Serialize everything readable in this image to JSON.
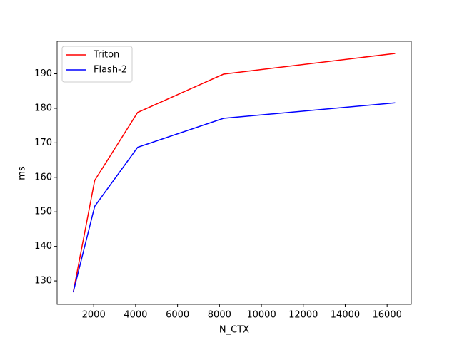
{
  "chart_data": {
    "type": "line",
    "x_label": "N_CTX",
    "y_label": "ms",
    "x": [
      1024,
      2048,
      4096,
      8192,
      16384
    ],
    "series": [
      {
        "name": "Triton",
        "color": "#ff0000",
        "values": [
          126.7,
          159.1,
          178.8,
          189.9,
          195.9
        ]
      },
      {
        "name": "Flash-2",
        "color": "#0000ff",
        "values": [
          126.7,
          151.6,
          168.7,
          177.1,
          181.6
        ]
      }
    ],
    "xlim": [
      256,
      17152
    ],
    "xticks": [
      2000,
      4000,
      6000,
      8000,
      10000,
      12000,
      14000,
      16000
    ],
    "ylim": [
      123.2,
      199.4
    ],
    "yticks": [
      130,
      140,
      150,
      160,
      170,
      180,
      190
    ],
    "legend": "upper left",
    "grid": false
  }
}
